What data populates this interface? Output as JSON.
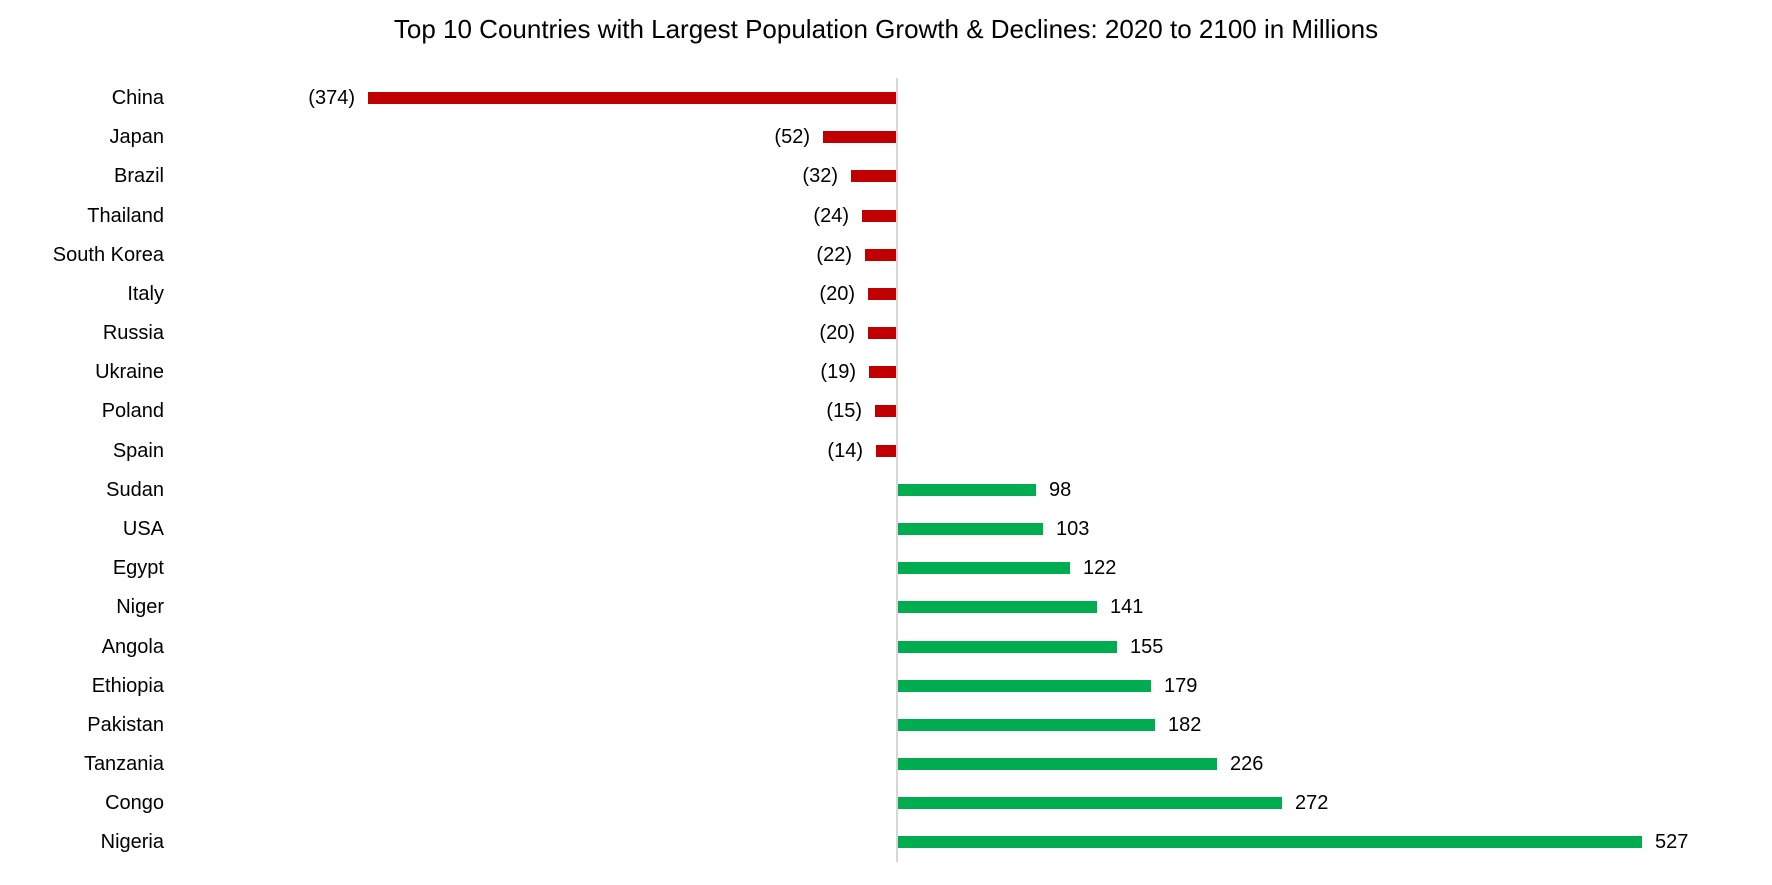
{
  "title": "Top 10 Countries with Largest Population Growth & Declines: 2020 to 2100 in Millions",
  "colors": {
    "decline": "#C00000",
    "growth": "#00AC50",
    "axis": "#D6D6D6",
    "text": "#000000",
    "background": "#FFFFFF"
  },
  "chart_data": {
    "type": "bar",
    "orientation": "horizontal",
    "title": "Top 10 Countries with Largest Population Growth & Declines: 2020 to 2100 in Millions",
    "xlabel": "",
    "ylabel": "",
    "grid": false,
    "legend": false,
    "xlim": [
      -400,
      560
    ],
    "categories": [
      "China",
      "Japan",
      "Brazil",
      "Thailand",
      "South Korea",
      "Italy",
      "Russia",
      "Ukraine",
      "Poland",
      "Spain",
      "Sudan",
      "USA",
      "Egypt",
      "Niger",
      "Angola",
      "Ethiopia",
      "Pakistan",
      "Tanzania",
      "Congo",
      "Nigeria"
    ],
    "values": [
      -374,
      -52,
      -32,
      -24,
      -22,
      -20,
      -20,
      -19,
      -15,
      -14,
      98,
      103,
      122,
      141,
      155,
      179,
      182,
      226,
      272,
      527
    ],
    "value_labels": [
      "(374)",
      "(52)",
      "(32)",
      "(24)",
      "(22)",
      "(20)",
      "(20)",
      "(19)",
      "(15)",
      "(14)",
      "98",
      "103",
      "122",
      "141",
      "155",
      "179",
      "182",
      "226",
      "272",
      "527"
    ],
    "series": [
      {
        "name": "decline",
        "color": "#C00000",
        "categories": [
          "China",
          "Japan",
          "Brazil",
          "Thailand",
          "South Korea",
          "Italy",
          "Russia",
          "Ukraine",
          "Poland",
          "Spain"
        ],
        "values": [
          -374,
          -52,
          -32,
          -24,
          -22,
          -20,
          -20,
          -19,
          -15,
          -14
        ]
      },
      {
        "name": "growth",
        "color": "#00AC50",
        "categories": [
          "Sudan",
          "USA",
          "Egypt",
          "Niger",
          "Angola",
          "Ethiopia",
          "Pakistan",
          "Tanzania",
          "Congo",
          "Nigeria"
        ],
        "values": [
          98,
          103,
          122,
          141,
          155,
          179,
          182,
          226,
          272,
          527
        ]
      }
    ]
  }
}
